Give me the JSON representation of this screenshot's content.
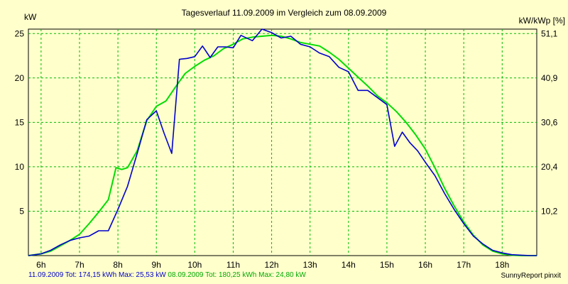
{
  "chart_data": {
    "type": "line",
    "title": "Tagesverlauf 11.09.2009 im Vergleich zum 08.09.2009",
    "ylabel_left": "kW",
    "ylabel_right": "kW/kWp [%]",
    "x_ticks": [
      "6h",
      "7h",
      "8h",
      "9h",
      "10h",
      "11h",
      "12h",
      "13h",
      "14h",
      "15h",
      "16h",
      "17h",
      "18h"
    ],
    "y_ticks_left": [
      "5",
      "10",
      "15",
      "20",
      "25"
    ],
    "y_ticks_right": [
      "10,2",
      "20,4",
      "30,6",
      "40,9",
      "51,1"
    ],
    "xlim": [
      5.67,
      18.9
    ],
    "ylim": [
      0,
      25.5
    ],
    "grid": true,
    "series": [
      {
        "color": "#0000cc",
        "x": [
          5.67,
          6.0,
          6.25,
          6.5,
          6.75,
          7.0,
          7.25,
          7.5,
          7.75,
          8.0,
          8.25,
          8.5,
          8.75,
          9.0,
          9.2,
          9.4,
          9.6,
          9.8,
          10.0,
          10.2,
          10.4,
          10.6,
          10.8,
          11.0,
          11.2,
          11.5,
          11.75,
          12.0,
          12.25,
          12.5,
          12.75,
          13.0,
          13.25,
          13.5,
          13.75,
          14.0,
          14.25,
          14.5,
          14.75,
          15.0,
          15.2,
          15.4,
          15.6,
          15.8,
          16.0,
          16.25,
          16.5,
          16.75,
          17.0,
          17.25,
          17.5,
          17.75,
          18.0,
          18.25,
          18.5,
          18.75,
          18.9
        ],
        "y": [
          0,
          0.2,
          0.6,
          1.2,
          1.7,
          2.0,
          2.2,
          2.8,
          2.8,
          5.2,
          7.8,
          11.5,
          15.3,
          16.3,
          13.8,
          11.5,
          22.1,
          22.2,
          22.4,
          23.6,
          22.3,
          23.5,
          23.5,
          23.4,
          24.8,
          24.2,
          25.5,
          25.1,
          24.5,
          24.7,
          23.8,
          23.5,
          22.8,
          22.4,
          21.2,
          20.7,
          18.6,
          18.6,
          17.8,
          17.0,
          12.3,
          13.9,
          12.7,
          11.8,
          10.5,
          9.0,
          7.0,
          5.2,
          3.6,
          2.2,
          1.3,
          0.6,
          0.3,
          0.1,
          0.05,
          0,
          0
        ]
      },
      {
        "color": "#00dd00",
        "x": [
          5.67,
          6.0,
          6.25,
          6.5,
          6.75,
          7.0,
          7.25,
          7.5,
          7.75,
          7.95,
          8.1,
          8.25,
          8.5,
          8.75,
          9.0,
          9.25,
          9.5,
          9.75,
          10.0,
          10.25,
          10.5,
          10.75,
          11.0,
          11.25,
          11.5,
          11.75,
          12.0,
          12.25,
          12.5,
          12.75,
          13.0,
          13.25,
          13.5,
          13.75,
          14.0,
          14.25,
          14.5,
          14.75,
          15.0,
          15.25,
          15.5,
          15.75,
          16.0,
          16.25,
          16.5,
          16.75,
          17.0,
          17.25,
          17.5,
          17.75,
          18.0,
          18.25,
          18.5,
          18.75,
          18.9
        ],
        "y": [
          0,
          0.2,
          0.5,
          1.1,
          1.7,
          2.4,
          3.6,
          4.9,
          6.3,
          9.9,
          9.7,
          9.9,
          11.8,
          15.2,
          16.8,
          17.4,
          19.0,
          20.5,
          21.3,
          22.0,
          22.5,
          23.3,
          23.8,
          24.4,
          24.6,
          24.7,
          24.8,
          24.7,
          24.4,
          24.0,
          23.8,
          23.6,
          22.9,
          22.1,
          21.1,
          20.1,
          19.1,
          18.0,
          17.2,
          16.2,
          15.0,
          13.6,
          12.0,
          9.9,
          7.6,
          5.6,
          3.8,
          2.3,
          1.2,
          0.5,
          0.2,
          0.05,
          0,
          0,
          0
        ]
      }
    ]
  },
  "footer": {
    "blue": "11.09.2009 Tot: 174,15 kWh Max: 25,53 kW",
    "green": "08.09.2009 Tot: 180,25 kWh Max: 24,80 kW"
  },
  "credit": "SunnyReport pinxit"
}
